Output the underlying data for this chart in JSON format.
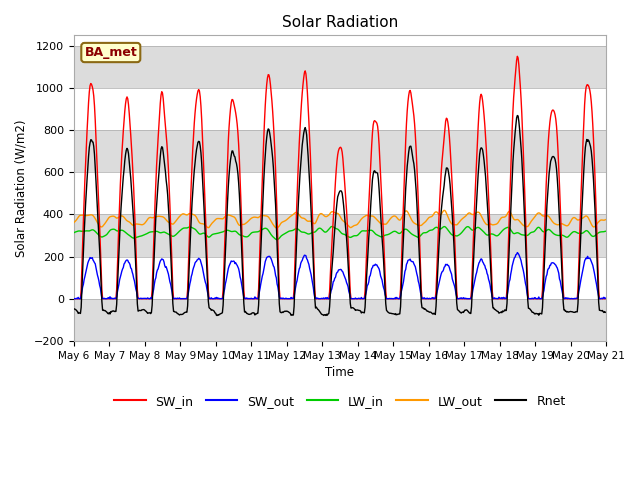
{
  "title": "Solar Radiation",
  "ylabel": "Solar Radiation (W/m2)",
  "xlabel": "Time",
  "ylim": [
    -200,
    1250
  ],
  "yticks": [
    -200,
    0,
    200,
    400,
    600,
    800,
    1000,
    1200
  ],
  "label_text": "BA_met",
  "label_facecolor": "#ffffcc",
  "label_edgecolor": "#8B6914",
  "colors": {
    "SW_in": "#ff0000",
    "SW_out": "#0000ff",
    "LW_in": "#00cc00",
    "LW_out": "#ff9900",
    "Rnet": "#000000"
  },
  "n_days": 15,
  "start_day": 6,
  "background_color": "#ffffff",
  "band_color": "#dcdcdc"
}
